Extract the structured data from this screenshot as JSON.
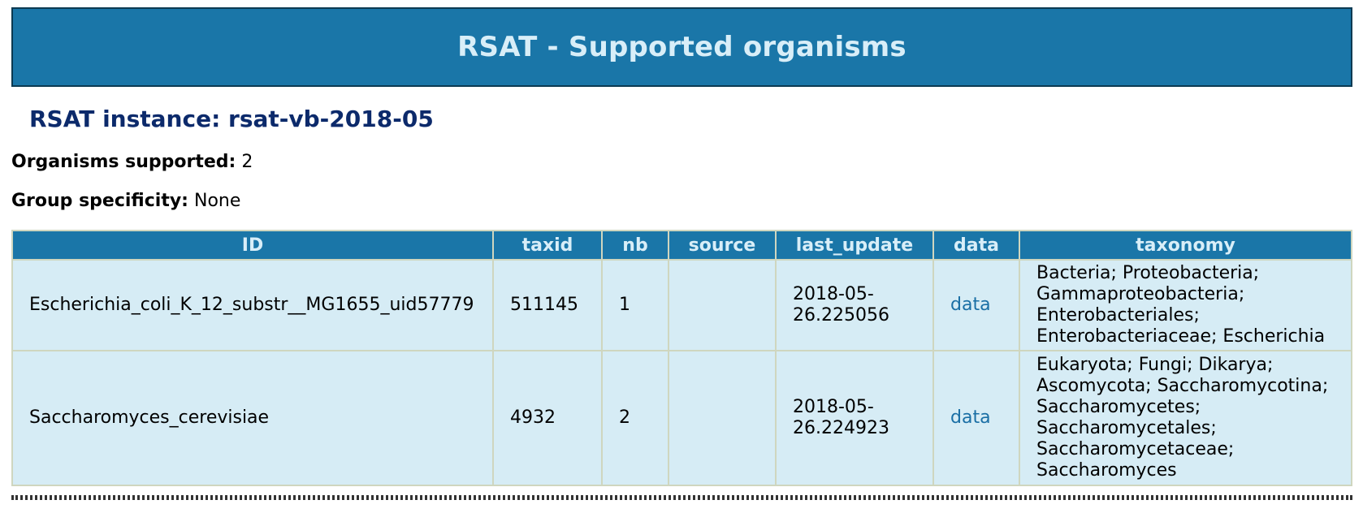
{
  "header": {
    "title": "RSAT - Supported organisms"
  },
  "instance": {
    "text": "RSAT instance: rsat-vb-2018-05"
  },
  "summary": {
    "organisms_label": "Organisms supported:",
    "organisms_value": "2",
    "group_label": "Group specificity:",
    "group_value": "None"
  },
  "table": {
    "columns": [
      "ID",
      "taxid",
      "nb",
      "source",
      "last_update",
      "data",
      "taxonomy"
    ],
    "rows": [
      {
        "id": "Escherichia_coli_K_12_substr__MG1655_uid57779",
        "taxid": "511145",
        "nb": "1",
        "source": "",
        "last_update": "2018-05-26.225056",
        "data": "data",
        "taxonomy": "Bacteria; Proteobacteria; Gammaproteobacteria; Enterobacteriales; Enterobacteriaceae; Escherichia"
      },
      {
        "id": "Saccharomyces_cerevisiae",
        "taxid": "4932",
        "nb": "2",
        "source": "",
        "last_update": "2018-05-26.224923",
        "data": "data",
        "taxonomy": "Eukaryota; Fungi; Dikarya; Ascomycota; Saccharomycotina; Saccharomycetes; Saccharomycetales; Saccharomycetaceae; Saccharomyces"
      }
    ]
  },
  "colors": {
    "header_bg": "#1a76a8",
    "header_text": "#d8eef8",
    "instance_text": "#0c2a6b",
    "row_bg": "#d6ecf5",
    "link": "#1a6fa5"
  }
}
